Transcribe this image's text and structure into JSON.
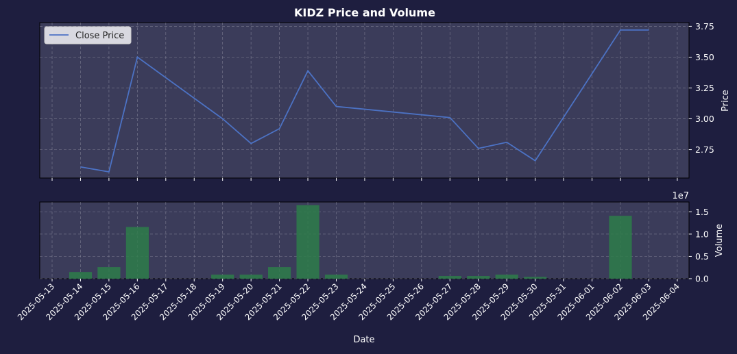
{
  "chart_data": [
    {
      "type": "line",
      "title": "KIDZ Price and Volume",
      "ylabel": "Price",
      "ylim": [
        2.52,
        3.78
      ],
      "yticks": [
        "2.75",
        "3.00",
        "3.25",
        "3.50",
        "3.75"
      ],
      "grid": true,
      "legend": "top-left",
      "series": [
        {
          "name": "Close Price",
          "color": "#4c72c4",
          "points": [
            {
              "x": "2025-05-14",
              "y": 2.61
            },
            {
              "x": "2025-05-15",
              "y": 2.57
            },
            {
              "x": "2025-05-16",
              "y": 3.5
            },
            {
              "x": "2025-05-19",
              "y": 3.0
            },
            {
              "x": "2025-05-20",
              "y": 2.8
            },
            {
              "x": "2025-05-21",
              "y": 2.92
            },
            {
              "x": "2025-05-22",
              "y": 3.39
            },
            {
              "x": "2025-05-23",
              "y": 3.1
            },
            {
              "x": "2025-05-27",
              "y": 3.01
            },
            {
              "x": "2025-05-28",
              "y": 2.76
            },
            {
              "x": "2025-05-29",
              "y": 2.81
            },
            {
              "x": "2025-05-30",
              "y": 2.66
            },
            {
              "x": "2025-06-02",
              "y": 3.72
            },
            {
              "x": "2025-06-03",
              "y": 3.72
            }
          ]
        }
      ]
    },
    {
      "type": "bar",
      "xlabel": "Date",
      "ylabel": "Volume",
      "offset_text": "1e7",
      "ylim": [
        0,
        1.72
      ],
      "yticks": [
        "0.0",
        "0.5",
        "1.0",
        "1.5"
      ],
      "grid": true,
      "color": "#2e7d4a",
      "bars": [
        {
          "x": "2025-05-14",
          "y": 0.15
        },
        {
          "x": "2025-05-15",
          "y": 0.26
        },
        {
          "x": "2025-05-16",
          "y": 1.16
        },
        {
          "x": "2025-05-19",
          "y": 0.09
        },
        {
          "x": "2025-05-20",
          "y": 0.09
        },
        {
          "x": "2025-05-21",
          "y": 0.26
        },
        {
          "x": "2025-05-22",
          "y": 1.65
        },
        {
          "x": "2025-05-23",
          "y": 0.09
        },
        {
          "x": "2025-05-27",
          "y": 0.06
        },
        {
          "x": "2025-05-28",
          "y": 0.06
        },
        {
          "x": "2025-05-29",
          "y": 0.09
        },
        {
          "x": "2025-05-30",
          "y": 0.04
        },
        {
          "x": "2025-06-02",
          "y": 1.41
        }
      ],
      "xticks": [
        "2025-05-13",
        "2025-05-14",
        "2025-05-15",
        "2025-05-16",
        "2025-05-17",
        "2025-05-18",
        "2025-05-19",
        "2025-05-20",
        "2025-05-21",
        "2025-05-22",
        "2025-05-23",
        "2025-05-24",
        "2025-05-25",
        "2025-05-26",
        "2025-05-27",
        "2025-05-28",
        "2025-05-29",
        "2025-05-30",
        "2025-05-31",
        "2025-06-01",
        "2025-06-02",
        "2025-06-03",
        "2025-06-04"
      ]
    }
  ]
}
